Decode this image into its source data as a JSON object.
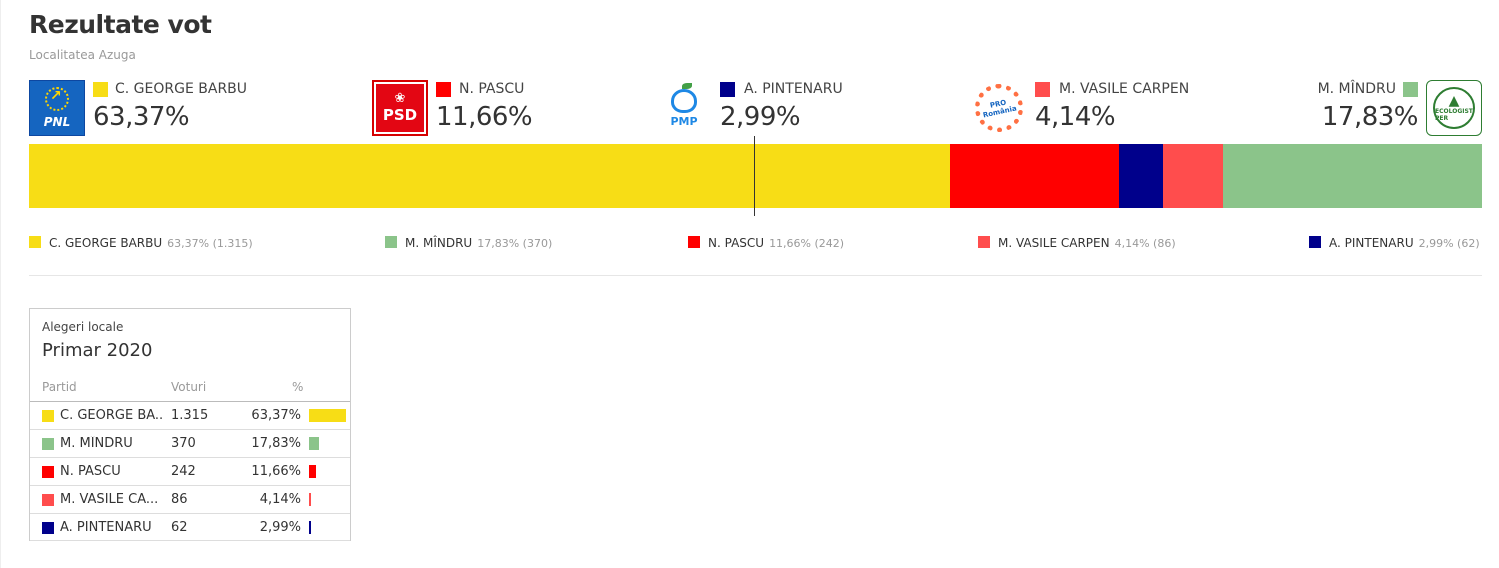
{
  "page": {
    "title": "Rezultate vot",
    "subtitle": "Localitatea Azuga"
  },
  "logos": {
    "pnl": "PNL",
    "psd": "PSD",
    "pmp": "PMP",
    "pro": "PRO România",
    "per": "ECOLOGIST PER"
  },
  "candidates": [
    {
      "name": "C. GEORGE BARBU",
      "pct_label": "63,37%",
      "color": "#f7dd16",
      "logo": "pnl-logo-icon"
    },
    {
      "name": "N. PASCU",
      "pct_label": "11,66%",
      "color": "#ff0000",
      "logo": "psd-logo-icon"
    },
    {
      "name": "A. PINTENARU",
      "pct_label": "2,99%",
      "color": "#00008b",
      "logo": "pmp-logo-icon"
    },
    {
      "name": "M. VASILE CARPEN",
      "pct_label": "4,14%",
      "color": "#ff4d4d",
      "logo": "pro-romania-logo-icon"
    },
    {
      "name": "M. MÎNDRU",
      "pct_label": "17,83%",
      "color": "#8bc48a",
      "logo": "per-logo-icon"
    }
  ],
  "legend": [
    {
      "name": "C. GEORGE BARBU",
      "detail": "63,37% (1.315)",
      "color": "#f7dd16"
    },
    {
      "name": "M. MÎNDRU",
      "detail": "17,83% (370)",
      "color": "#8bc48a"
    },
    {
      "name": "N. PASCU",
      "detail": "11,66% (242)",
      "color": "#ff0000"
    },
    {
      "name": "M. VASILE CARPEN",
      "detail": "4,14% (86)",
      "color": "#ff4d4d"
    },
    {
      "name": "A. PINTENARU",
      "detail": "2,99% (62)",
      "color": "#00008b"
    }
  ],
  "card": {
    "subtitle": "Alegeri locale",
    "title": "Primar 2020",
    "headers": {
      "party": "Partid",
      "votes": "Voturi",
      "pct": "%"
    },
    "rows": [
      {
        "name": "C. GEORGE BA...",
        "votes": "1.315",
        "pct": "63,37%",
        "color": "#f7dd16"
      },
      {
        "name": "M. MÎNDRU",
        "votes": "370",
        "pct": "17,83%",
        "color": "#8bc48a"
      },
      {
        "name": "N. PASCU",
        "votes": "242",
        "pct": "11,66%",
        "color": "#ff0000"
      },
      {
        "name": "M. VASILE CA...",
        "votes": "86",
        "pct": "4,14%",
        "color": "#ff4d4d"
      },
      {
        "name": "A. PINTENARU",
        "votes": "62",
        "pct": "2,99%",
        "color": "#00008b"
      }
    ]
  },
  "chart_data": {
    "type": "bar",
    "orientation": "horizontal-stacked",
    "categories": [
      "C. GEORGE BARBU",
      "N. PASCU",
      "A. PINTENARU",
      "M. VASILE CARPEN",
      "M. MÎNDRU"
    ],
    "values": [
      63.37,
      11.66,
      2.99,
      4.14,
      17.83
    ],
    "votes": [
      1315,
      242,
      62,
      86,
      370
    ],
    "colors": [
      "#f7dd16",
      "#ff0000",
      "#00008b",
      "#ff4d4d",
      "#8bc48a"
    ],
    "unit": "%",
    "xlim": [
      0,
      100
    ],
    "marker_value": 50,
    "grid": false
  }
}
